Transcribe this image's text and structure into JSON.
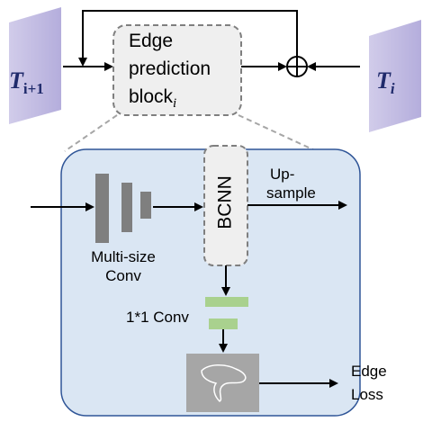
{
  "top": {
    "input": {
      "symbol": "T",
      "subscript": "i+1"
    },
    "output": {
      "symbol": "T",
      "subscript": "i"
    },
    "block": {
      "lines": [
        "Edge",
        "prediction",
        "block"
      ],
      "subscript": "i"
    }
  },
  "detail": {
    "upsample": {
      "lines": [
        "Up-",
        "sample"
      ]
    },
    "bcnn": "BCNN",
    "multi_conv": {
      "lines": [
        "Multi-size",
        "Conv"
      ]
    },
    "conv1x1": "1*1 Conv",
    "loss": {
      "lines": [
        "Edge",
        "Loss"
      ]
    }
  }
}
